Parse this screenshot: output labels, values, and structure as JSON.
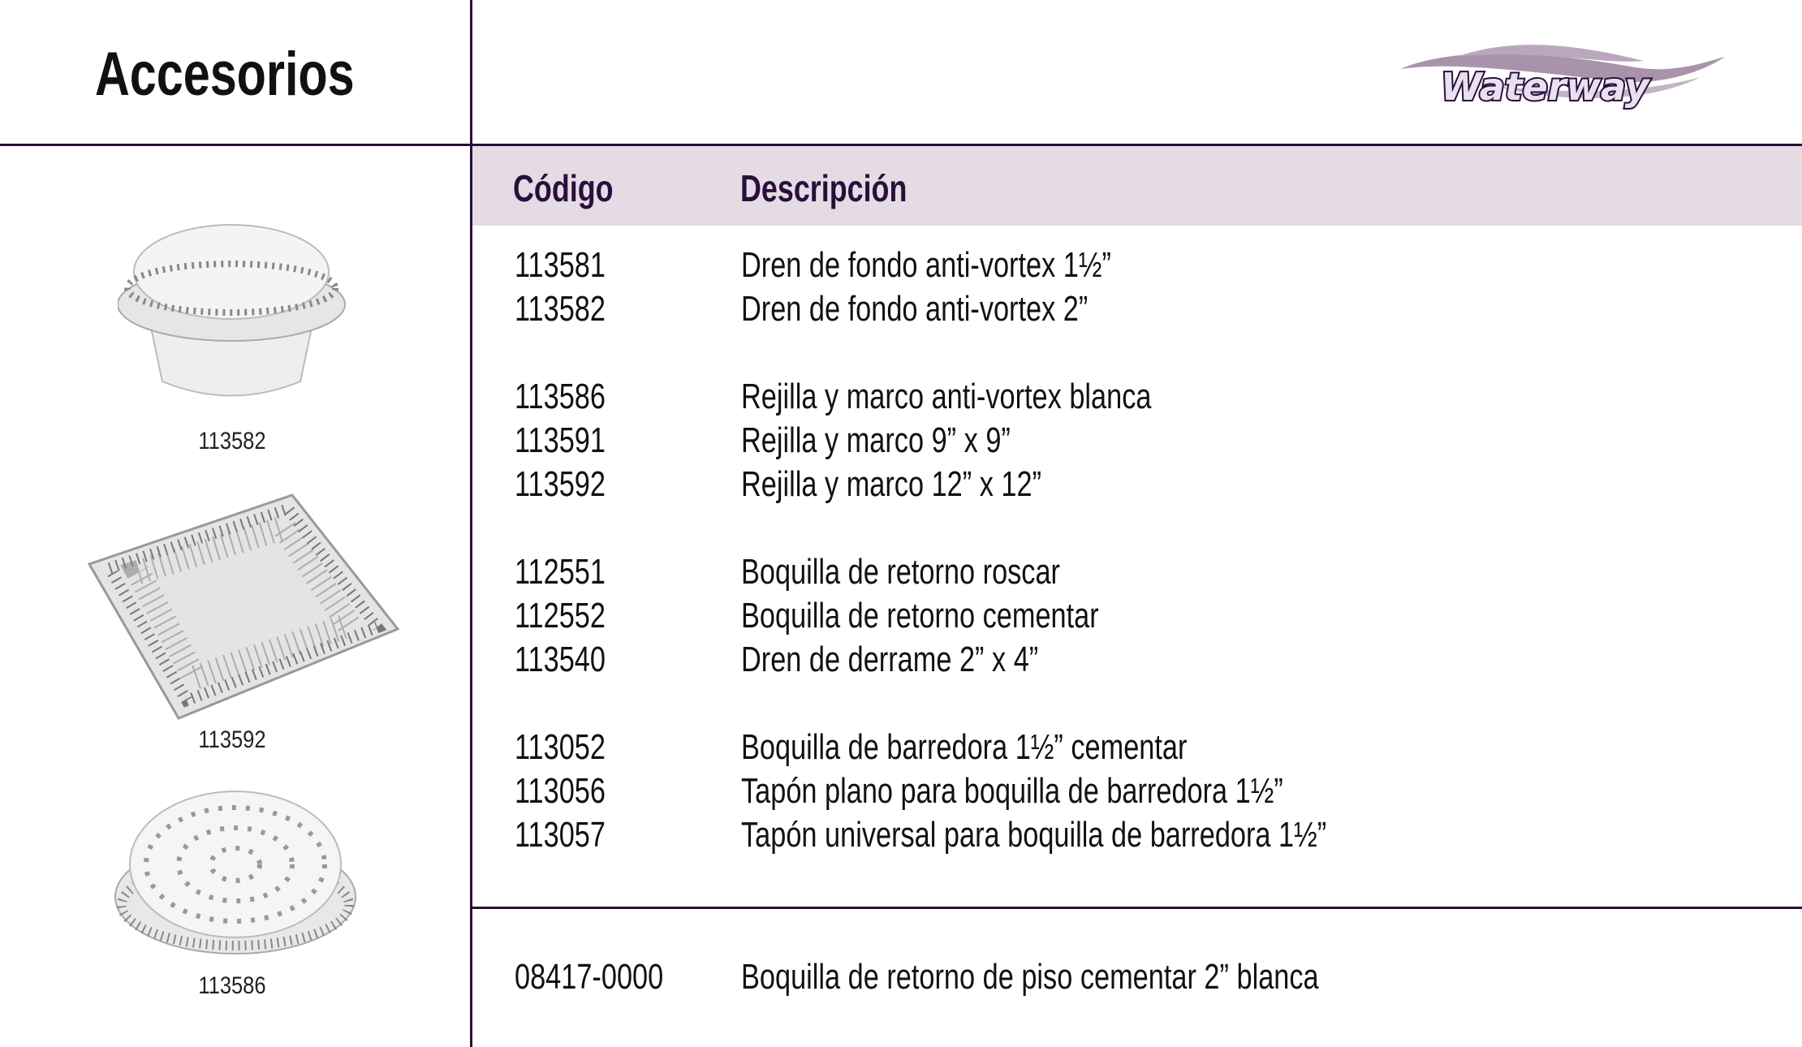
{
  "page": {
    "title": "Accesorios"
  },
  "logo": {
    "text": "Waterway",
    "colors": {
      "swoosh": "#a893ab",
      "outline": "#2a0f3a"
    }
  },
  "table": {
    "headers": {
      "code": "Código",
      "description": "Descripción"
    },
    "groups": [
      [
        {
          "code": "113581",
          "description": "Dren de fondo anti-vortex 1½”"
        },
        {
          "code": "113582",
          "description": "Dren de fondo anti-vortex 2”"
        }
      ],
      [
        {
          "code": "113586",
          "description": "Rejilla y marco anti-vortex blanca"
        },
        {
          "code": "113591",
          "description": "Rejilla y marco 9” x 9”"
        },
        {
          "code": "113592",
          "description": "Rejilla y marco 12” x 12”"
        }
      ],
      [
        {
          "code": "112551",
          "description": "Boquilla de retorno roscar"
        },
        {
          "code": "112552",
          "description": "Boquilla de retorno cementar"
        },
        {
          "code": "113540",
          "description": "Dren de derrame 2” x 4”"
        }
      ],
      [
        {
          "code": "113052",
          "description": "Boquilla de barredora 1½” cementar"
        },
        {
          "code": "113056",
          "description": "Tapón plano para boquilla de barredora 1½”"
        },
        {
          "code": "113057",
          "description": "Tapón universal para boquilla de barredora 1½”"
        }
      ]
    ],
    "footer_row": {
      "code": "08417-0000",
      "description": "Boquilla de retorno de piso cementar 2” blanca"
    }
  },
  "images": [
    {
      "caption": "113582"
    },
    {
      "caption": "113592"
    },
    {
      "caption": "113586"
    }
  ],
  "colors": {
    "rule": "#2a0f3a",
    "header_band": "#e5dbe5",
    "header_text": "#2a0f3a"
  }
}
